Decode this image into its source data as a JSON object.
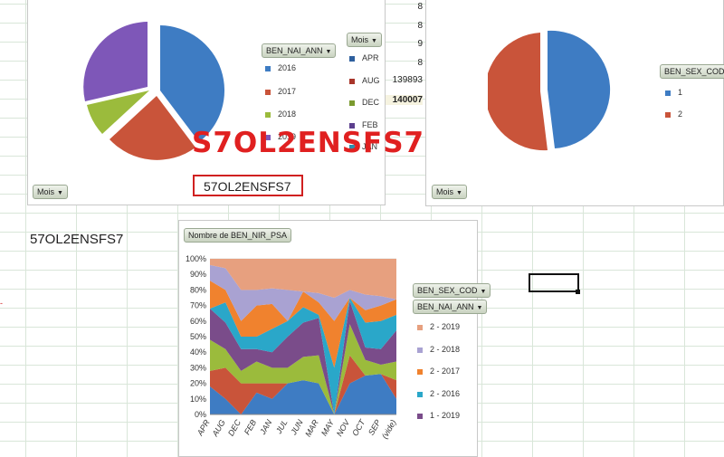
{
  "watermark_text": "S7OL2ENSFS7",
  "boxed_text": "57OL2ENSFS7",
  "sheet_text": "57OL2ENSFS7",
  "cells": {
    "c1": "8",
    "c2": "8",
    "c3": "9",
    "c4": "8",
    "c5": "139893",
    "c6": "140007"
  },
  "pie1": {
    "field_button": "BEN_NAI_ANN",
    "legend": [
      {
        "label": "2016",
        "color": "#3e7cc3"
      },
      {
        "label": "2017",
        "color": "#c9543a"
      },
      {
        "label": "2018",
        "color": "#9bbb3c"
      },
      {
        "label": "2019",
        "color": "#7e57b8"
      }
    ],
    "mois_button": "Mois",
    "mois_button_bottom": "Mois",
    "mois_legend": [
      {
        "label": "APR",
        "color": "#2e5f9e"
      },
      {
        "label": "AUG",
        "color": "#a8352a"
      },
      {
        "label": "DEC",
        "color": "#7a9a2e"
      },
      {
        "label": "FEB",
        "color": "#5c3f8e"
      },
      {
        "label": "JAN",
        "color": "#2a8fae"
      }
    ]
  },
  "pie2": {
    "field_button": "BEN_SEX_COD",
    "legend": [
      {
        "label": "1",
        "color": "#3e7cc3"
      },
      {
        "label": "2",
        "color": "#c9543a"
      }
    ],
    "mois_button": "Mois"
  },
  "area_chart": {
    "value_button": "Nombre de BEN_NIR_PSA",
    "field_button_1": "BEN_SEX_COD",
    "field_button_2": "BEN_NAI_ANN",
    "legend": [
      {
        "label": "2 - 2019",
        "color": "#e7a07f"
      },
      {
        "label": "2 - 2018",
        "color": "#a9a2d2"
      },
      {
        "label": "2 - 2017",
        "color": "#f0822e"
      },
      {
        "label": "2 - 2016",
        "color": "#2aa7c9"
      },
      {
        "label": "1 - 2019",
        "color": "#7a4c8a"
      }
    ]
  },
  "chart_data": {
    "type": "area",
    "categories": [
      "APR",
      "AUG",
      "DEC",
      "FEB",
      "JAN",
      "JUL",
      "JUN",
      "MAR",
      "MAY",
      "NOV",
      "OCT",
      "SEP",
      "(vide)"
    ],
    "yticks": [
      "0%",
      "10%",
      "20%",
      "30%",
      "40%",
      "50%",
      "60%",
      "70%",
      "80%",
      "90%",
      "100%"
    ],
    "ylim": [
      0,
      100
    ],
    "series": [
      {
        "name": "",
        "color": "#3e7cc3",
        "values": [
          18,
          10,
          0,
          14,
          10,
          20,
          22,
          20,
          0,
          20,
          25,
          26,
          10
        ]
      },
      {
        "name": "",
        "color": "#c9543a",
        "values": [
          10,
          20,
          20,
          6,
          10,
          0,
          0,
          0,
          0,
          18,
          0,
          0,
          12
        ]
      },
      {
        "name": "",
        "color": "#9bbb3c",
        "values": [
          20,
          12,
          8,
          14,
          10,
          10,
          15,
          18,
          0,
          20,
          10,
          6,
          12
        ]
      },
      {
        "name": "1 - 2019",
        "color": "#7a4c8a",
        "values": [
          20,
          17,
          14,
          8,
          10,
          20,
          22,
          24,
          0,
          15,
          8,
          10,
          20
        ]
      },
      {
        "name": "2 - 2016",
        "color": "#2aa7c9",
        "values": [
          0,
          13,
          8,
          8,
          15,
          10,
          10,
          2,
          30,
          2,
          16,
          18,
          10
        ]
      },
      {
        "name": "2 - 2017",
        "color": "#f0822e",
        "values": [
          18,
          8,
          10,
          20,
          16,
          0,
          10,
          8,
          30,
          0,
          8,
          10,
          10
        ]
      },
      {
        "name": "2 - 2018",
        "color": "#a9a2d2",
        "values": [
          10,
          14,
          20,
          10,
          10,
          20,
          0,
          6,
          15,
          5,
          10,
          6,
          0
        ]
      },
      {
        "name": "2 - 2019",
        "color": "#e7a07f",
        "values": [
          4,
          6,
          20,
          20,
          19,
          20,
          21,
          22,
          25,
          20,
          23,
          24,
          26
        ]
      }
    ]
  }
}
